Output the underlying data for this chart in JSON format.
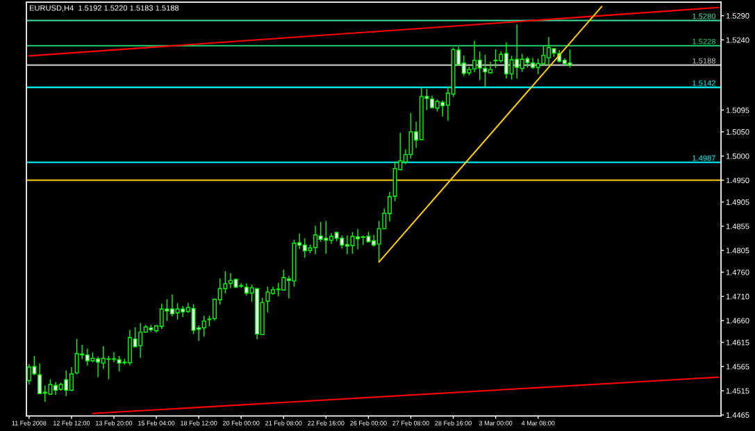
{
  "chart_data": {
    "type": "candlestick",
    "title": "EURUSD,H4  1.5192 1.5220 1.5183 1.5188",
    "categories": [
      "11 Feb 2008",
      null,
      null,
      null,
      null,
      null,
      null,
      null,
      "12 Feb 12:00",
      null,
      null,
      null,
      null,
      null,
      null,
      null,
      "13 Feb 20:00",
      null,
      null,
      null,
      null,
      null,
      null,
      null,
      "15 Feb 04:00",
      null,
      null,
      null,
      null,
      null,
      null,
      null,
      "18 Feb 12:00",
      null,
      null,
      null,
      null,
      null,
      null,
      null,
      "20 Feb 00:00",
      null,
      null,
      null,
      null,
      null,
      null,
      null,
      "21 Feb 08:00",
      null,
      null,
      null,
      null,
      null,
      null,
      null,
      "22 Feb 16:00",
      null,
      null,
      null,
      null,
      null,
      null,
      null,
      "26 Feb 00:00",
      null,
      null,
      null,
      null,
      null,
      null,
      null,
      "27 Feb 08:00",
      null,
      null,
      null,
      null,
      null,
      null,
      null,
      "28 Feb 16:00",
      null,
      null,
      null,
      null,
      null,
      null,
      null,
      "3 Mar 00:00",
      null,
      null,
      null,
      null,
      null,
      null,
      null,
      "4 Mar 08:00",
      null,
      null,
      null,
      null,
      null,
      null,
      null,
      null,
      null,
      null,
      null,
      null,
      null,
      null,
      null,
      null,
      null,
      null,
      null,
      null,
      null,
      null,
      null,
      null,
      null,
      null,
      null,
      null,
      null,
      null,
      null,
      null,
      null,
      null
    ],
    "ohlc": [
      [
        1.4536,
        1.457,
        1.4528,
        1.4564
      ],
      [
        1.4565,
        1.4587,
        1.4547,
        1.455
      ],
      [
        1.4548,
        1.4571,
        1.4509,
        1.4509
      ],
      [
        1.4512,
        1.4526,
        1.4492,
        1.451
      ],
      [
        1.4508,
        1.4539,
        1.4507,
        1.4528
      ],
      [
        1.4526,
        1.4533,
        1.4506,
        1.4516
      ],
      [
        1.4518,
        1.4532,
        1.4515,
        1.4528
      ],
      [
        1.4538,
        1.4557,
        1.4504,
        1.4516
      ],
      [
        1.4516,
        1.4564,
        1.4514,
        1.455
      ],
      [
        1.4552,
        1.4622,
        1.4549,
        1.4592
      ],
      [
        1.4591,
        1.461,
        1.458,
        1.4589
      ],
      [
        1.4589,
        1.4602,
        1.4567,
        1.4577
      ],
      [
        1.4577,
        1.4594,
        1.4574,
        1.4582
      ],
      [
        1.4581,
        1.4585,
        1.4543,
        1.4574
      ],
      [
        1.4572,
        1.4607,
        1.456,
        1.4582
      ],
      [
        1.4581,
        1.4587,
        1.4539,
        1.458
      ],
      [
        1.4581,
        1.4595,
        1.4574,
        1.458
      ],
      [
        1.4579,
        1.4587,
        1.4555,
        1.4572
      ],
      [
        1.4574,
        1.4581,
        1.4569,
        1.4573
      ],
      [
        1.4573,
        1.4641,
        1.4568,
        1.4625
      ],
      [
        1.4622,
        1.4646,
        1.4606,
        1.4606
      ],
      [
        1.4608,
        1.4655,
        1.4583,
        1.4636
      ],
      [
        1.4636,
        1.4651,
        1.4635,
        1.4647
      ],
      [
        1.4645,
        1.4651,
        1.4637,
        1.4641
      ],
      [
        1.4639,
        1.4651,
        1.4635,
        1.4649
      ],
      [
        1.4648,
        1.4695,
        1.4643,
        1.4684
      ],
      [
        1.4684,
        1.4704,
        1.4659,
        1.468
      ],
      [
        1.4684,
        1.4714,
        1.4669,
        1.4674
      ],
      [
        1.4676,
        1.4696,
        1.4662,
        1.4684
      ],
      [
        1.4684,
        1.469,
        1.4667,
        1.4678
      ],
      [
        1.4679,
        1.4697,
        1.4676,
        1.4687
      ],
      [
        1.4685,
        1.4694,
        1.4632,
        1.464
      ],
      [
        1.4645,
        1.465,
        1.4618,
        1.4642
      ],
      [
        1.4645,
        1.467,
        1.4627,
        1.4659
      ],
      [
        1.4662,
        1.467,
        1.4648,
        1.4663
      ],
      [
        1.4664,
        1.4705,
        1.466,
        1.4704
      ],
      [
        1.4703,
        1.4747,
        1.4693,
        1.4726
      ],
      [
        1.4726,
        1.4762,
        1.4716,
        1.4736
      ],
      [
        1.4737,
        1.4758,
        1.4727,
        1.4743
      ],
      [
        1.4745,
        1.4747,
        1.4728,
        1.4729
      ],
      [
        1.4732,
        1.4737,
        1.4728,
        1.4731
      ],
      [
        1.4729,
        1.4737,
        1.4712,
        1.4717
      ],
      [
        1.4717,
        1.4734,
        1.4699,
        1.4728
      ],
      [
        1.4726,
        1.4727,
        1.4621,
        1.4632
      ],
      [
        1.4631,
        1.4707,
        1.463,
        1.4697
      ],
      [
        1.47,
        1.473,
        1.4677,
        1.4719
      ],
      [
        1.4716,
        1.473,
        1.4713,
        1.4724
      ],
      [
        1.4724,
        1.4738,
        1.471,
        1.4725
      ],
      [
        1.4723,
        1.4765,
        1.4722,
        1.4749
      ],
      [
        1.4746,
        1.4752,
        1.4706,
        1.4743
      ],
      [
        1.4742,
        1.4827,
        1.473,
        1.482
      ],
      [
        1.4821,
        1.484,
        1.4808,
        1.4816
      ],
      [
        1.4816,
        1.483,
        1.479,
        1.4804
      ],
      [
        1.4805,
        1.4817,
        1.4799,
        1.481
      ],
      [
        1.4811,
        1.4856,
        1.4797,
        1.4837
      ],
      [
        1.4835,
        1.4864,
        1.4823,
        1.4828
      ],
      [
        1.483,
        1.4866,
        1.4798,
        1.4826
      ],
      [
        1.4826,
        1.4841,
        1.4819,
        1.4834
      ],
      [
        1.4842,
        1.4844,
        1.4824,
        1.483
      ],
      [
        1.483,
        1.4836,
        1.4809,
        1.4816
      ],
      [
        1.4817,
        1.4836,
        1.4797,
        1.4814
      ],
      [
        1.4815,
        1.4843,
        1.4798,
        1.4834
      ],
      [
        1.4833,
        1.4849,
        1.4807,
        1.4829
      ],
      [
        1.4833,
        1.4836,
        1.4816,
        1.4832
      ],
      [
        1.4834,
        1.4843,
        1.4822,
        1.4823
      ],
      [
        1.4825,
        1.4837,
        1.4813,
        1.4816
      ],
      [
        1.4818,
        1.4866,
        1.4781,
        1.485
      ],
      [
        1.485,
        1.4892,
        1.4849,
        1.4882
      ],
      [
        1.4881,
        1.4926,
        1.4865,
        1.4916
      ],
      [
        1.4917,
        1.4988,
        1.4907,
        1.4974
      ],
      [
        1.4972,
        1.5048,
        1.4971,
        1.499
      ],
      [
        1.4988,
        1.5014,
        1.4983,
        1.5003
      ],
      [
        1.5003,
        1.5089,
        1.4995,
        1.505
      ],
      [
        1.505,
        1.5071,
        1.5017,
        1.5033
      ],
      [
        1.5034,
        1.5143,
        1.5033,
        1.5123
      ],
      [
        1.5123,
        1.5139,
        1.5095,
        1.5119
      ],
      [
        1.5118,
        1.5125,
        1.5098,
        1.51
      ],
      [
        1.5099,
        1.5117,
        1.5092,
        1.5113
      ],
      [
        1.5111,
        1.5115,
        1.5082,
        1.5104
      ],
      [
        1.5105,
        1.5143,
        1.5073,
        1.513
      ],
      [
        1.5128,
        1.5224,
        1.5122,
        1.522
      ],
      [
        1.5219,
        1.5226,
        1.5188,
        1.5189
      ],
      [
        1.5192,
        1.5208,
        1.5165,
        1.5171
      ],
      [
        1.5172,
        1.5185,
        1.5167,
        1.5179
      ],
      [
        1.518,
        1.5238,
        1.5173,
        1.5198
      ],
      [
        1.5198,
        1.5216,
        1.5157,
        1.5182
      ],
      [
        1.5181,
        1.5209,
        1.5142,
        1.5174
      ],
      [
        1.5172,
        1.5195,
        1.5171,
        1.5179
      ],
      [
        1.5197,
        1.5221,
        1.5182,
        1.5198
      ],
      [
        1.5197,
        1.5216,
        1.5193,
        1.521
      ],
      [
        1.5212,
        1.5235,
        1.516,
        1.517
      ],
      [
        1.517,
        1.5207,
        1.5158,
        1.5199
      ],
      [
        1.52,
        1.5272,
        1.516,
        1.5183
      ],
      [
        1.5181,
        1.5211,
        1.5174,
        1.52
      ],
      [
        1.5201,
        1.5205,
        1.5183,
        1.5193
      ],
      [
        1.5192,
        1.5203,
        1.518,
        1.5183
      ],
      [
        1.5183,
        1.5201,
        1.5169,
        1.5191
      ],
      [
        1.5191,
        1.5229,
        1.5187,
        1.5208
      ],
      [
        1.5203,
        1.5246,
        1.5187,
        1.5224
      ],
      [
        1.5222,
        1.5222,
        1.5205,
        1.5213
      ],
      [
        1.5212,
        1.5219,
        1.5193,
        1.5196
      ],
      [
        1.5198,
        1.5202,
        1.5188,
        1.5191
      ],
      [
        1.5192,
        1.522,
        1.5183,
        1.5188
      ],
      null,
      null,
      null,
      null,
      null,
      null,
      null,
      null,
      null,
      null,
      null,
      null,
      null,
      null,
      null,
      null,
      null,
      null,
      null,
      null,
      null,
      null,
      null,
      null,
      null,
      null,
      null,
      null
    ],
    "color": "#00ff00",
    "colors": [
      "#000000",
      "#ffffff",
      "#ffffff",
      "#ffffff",
      "#000000",
      "#ffffff",
      "#000000",
      "#ffffff",
      "#000000",
      "#000000",
      "#ffffff",
      "#ffffff",
      "#000000",
      "#ffffff",
      "#000000",
      "#ffffff",
      "#ffffff",
      "#ffffff",
      "#ffffff",
      "#000000",
      "#ffffff",
      "#000000",
      "#000000",
      "#ffffff",
      "#000000",
      "#000000",
      "#ffffff",
      "#ffffff",
      "#000000",
      "#ffffff",
      "#000000",
      "#ffffff",
      "#ffffff",
      "#000000",
      "#000000",
      "#000000",
      "#000000",
      "#000000",
      "#000000",
      "#ffffff",
      "#ffffff",
      "#ffffff",
      "#000000",
      "#ffffff",
      "#000000",
      "#000000",
      "#000000",
      "#000000",
      "#000000",
      "#ffffff",
      "#000000",
      "#ffffff",
      "#ffffff",
      "#000000",
      "#000000",
      "#ffffff",
      "#ffffff",
      "#000000",
      "#ffffff",
      "#ffffff",
      "#ffffff",
      "#000000",
      "#ffffff",
      "#ffffff",
      "#ffffff",
      "#ffffff",
      "#000000",
      "#000000",
      "#000000",
      "#000000",
      "#000000",
      "#000000",
      "#000000",
      "#ffffff",
      "#000000",
      "#ffffff",
      "#ffffff",
      "#000000",
      "#ffffff",
      "#000000",
      "#000000",
      "#ffffff",
      "#ffffff",
      "#000000",
      "#000000",
      "#ffffff",
      "#ffffff",
      "#000000",
      "#000000",
      "#000000",
      "#ffffff",
      "#000000",
      "#ffffff",
      "#000000",
      "#ffffff",
      "#ffffff",
      "#000000",
      "#000000",
      "#000000",
      "#ffffff",
      "#ffffff",
      "#ffffff",
      "#ffffff",
      null,
      null,
      null,
      null,
      null,
      null,
      null,
      null,
      null,
      null,
      null,
      null,
      null,
      null,
      null,
      null,
      null,
      null,
      null,
      null,
      null,
      null,
      null,
      null,
      null,
      null,
      null,
      null
    ],
    "series": [
      {
        "type": "line",
        "color": "#ff0000",
        "values": [
          1.5207,
          null,
          null,
          null,
          null,
          null,
          null,
          null,
          null,
          null,
          null,
          null,
          null,
          null,
          null,
          null,
          null,
          null,
          null,
          null,
          null,
          null,
          null,
          null,
          null,
          null,
          null,
          null,
          null,
          null,
          null,
          null,
          null,
          null,
          null,
          null,
          null,
          null,
          null,
          null,
          null,
          null,
          null,
          null,
          null,
          null,
          null,
          null,
          null,
          null,
          null,
          null,
          null,
          null,
          null,
          null,
          null,
          null,
          null,
          null,
          null,
          null,
          null,
          null,
          null,
          null,
          null,
          null,
          null,
          null,
          null,
          null,
          null,
          null,
          null,
          null,
          null,
          null,
          null,
          null,
          null,
          null,
          null,
          null,
          null,
          null,
          null,
          null,
          null,
          null,
          null,
          null,
          null,
          null,
          null,
          null,
          null,
          null,
          null,
          null,
          null,
          null,
          null,
          null,
          null,
          null,
          null,
          null,
          null,
          null,
          null,
          null,
          null,
          null,
          null,
          null,
          null,
          null,
          null,
          null,
          null,
          null,
          null,
          null,
          null,
          null,
          null,
          null,
          null,
          null,
          1.5307
        ]
      },
      {
        "type": "line",
        "color": "#ff0000",
        "values": [
          null,
          null,
          null,
          null,
          null,
          null,
          null,
          null,
          null,
          null,
          null,
          null,
          1.4468,
          null,
          null,
          null,
          null,
          null,
          null,
          null,
          null,
          null,
          null,
          null,
          null,
          null,
          null,
          null,
          null,
          null,
          null,
          null,
          null,
          null,
          null,
          null,
          null,
          null,
          null,
          null,
          null,
          null,
          null,
          null,
          null,
          null,
          null,
          null,
          null,
          null,
          null,
          null,
          null,
          null,
          null,
          null,
          null,
          null,
          null,
          null,
          null,
          null,
          null,
          null,
          null,
          null,
          null,
          null,
          null,
          null,
          null,
          null,
          null,
          null,
          null,
          null,
          null,
          null,
          null,
          null,
          null,
          null,
          null,
          null,
          null,
          null,
          null,
          null,
          null,
          null,
          null,
          null,
          null,
          null,
          null,
          null,
          null,
          null,
          null,
          null,
          null,
          null,
          null,
          null,
          null,
          null,
          null,
          null,
          null,
          null,
          null,
          null,
          null,
          null,
          null,
          null,
          null,
          null,
          null,
          null,
          null,
          null,
          null,
          null,
          null,
          null,
          null,
          null,
          null,
          null,
          1.4543
        ]
      },
      {
        "type": "line",
        "color": "#ffcc00",
        "values": [
          null,
          null,
          null,
          null,
          null,
          null,
          null,
          null,
          null,
          null,
          null,
          null,
          null,
          null,
          null,
          null,
          null,
          null,
          null,
          null,
          null,
          null,
          null,
          null,
          null,
          null,
          null,
          null,
          null,
          null,
          null,
          null,
          null,
          null,
          null,
          null,
          null,
          null,
          null,
          null,
          null,
          null,
          null,
          null,
          null,
          null,
          null,
          null,
          null,
          null,
          null,
          null,
          null,
          null,
          null,
          null,
          null,
          null,
          null,
          null,
          null,
          null,
          null,
          null,
          null,
          null,
          1.4781,
          null,
          null,
          null,
          null,
          null,
          null,
          null,
          null,
          null,
          null,
          null,
          null,
          null,
          null,
          null,
          null,
          null,
          null,
          null,
          null,
          null,
          null,
          null,
          null,
          null,
          null,
          null,
          null,
          null,
          null,
          null,
          null,
          null,
          null,
          null,
          null,
          null,
          null,
          null,
          null,
          null,
          1.5309,
          null,
          null,
          null,
          null,
          null,
          null,
          null,
          null,
          null,
          null,
          null,
          null,
          null,
          null,
          null,
          null,
          null,
          null,
          null,
          null,
          null,
          null
        ]
      }
    ],
    "ref_lines": [
      {
        "axis": "y",
        "value": 1.528,
        "label": "1.5280",
        "color": "#40e0a0"
      },
      {
        "axis": "y",
        "value": 1.5228,
        "label": "1.5228",
        "color": "#20d070"
      },
      {
        "axis": "y",
        "value": 1.5188,
        "label": "1.5188",
        "color": "#c0c0c0"
      },
      {
        "axis": "y",
        "value": 1.5142,
        "label": "1.5142",
        "color": "#00ffff"
      },
      {
        "axis": "y",
        "value": 1.4987,
        "label": "1.4987",
        "color": "#00ffff"
      },
      {
        "axis": "y",
        "value": 1.495,
        "color": "#ffcc00"
      }
    ],
    "ylim": [
      1.4463,
      1.5318
    ],
    "yticks": [
      {
        "value": 1.529,
        "label": "1.5290"
      },
      {
        "value": 1.524,
        "label": "1.5240"
      },
      1.5095,
      {
        "value": 1.505,
        "label": "1.5050"
      },
      {
        "value": 1.5,
        "label": "1.5000"
      },
      {
        "value": 1.495,
        "label": "1.4950"
      },
      1.4905,
      1.4855,
      1.4805,
      {
        "value": 1.476,
        "label": "1.4760"
      },
      {
        "value": 1.471,
        "label": "1.4710"
      },
      {
        "value": 1.466,
        "label": "1.4660"
      },
      1.4615,
      1.4565,
      1.4515,
      1.4465
    ]
  }
}
